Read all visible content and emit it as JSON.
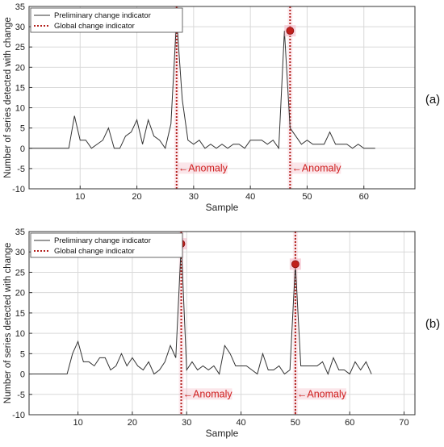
{
  "colors": {
    "preliminary": "#333333",
    "global": "#b3201c",
    "marker": "#c0201c",
    "marker_glow": "#f4b6c4",
    "anomaly_text": "#d02020",
    "grid": "#d9d9d9",
    "axis": "#333333"
  },
  "chart_data": [
    {
      "type": "line",
      "panel_label": "(a)",
      "xlabel": "Sample",
      "ylabel": "Number of series detected with change",
      "xlim": [
        1,
        69
      ],
      "ylim": [
        -10,
        35
      ],
      "xticks": [
        10,
        20,
        30,
        40,
        50,
        60
      ],
      "yticks": [
        -10,
        -5,
        0,
        5,
        10,
        15,
        20,
        25,
        30,
        35
      ],
      "grid": true,
      "legend": {
        "placement": "top-left",
        "entries": [
          "Preliminary change indicator",
          "Global change indicator"
        ]
      },
      "series": [
        {
          "name": "Preliminary change indicator",
          "style": "solid",
          "x": [
            1,
            2,
            3,
            4,
            5,
            6,
            7,
            8,
            9,
            10,
            11,
            12,
            13,
            14,
            15,
            16,
            17,
            18,
            19,
            20,
            21,
            22,
            23,
            24,
            25,
            26,
            27,
            28,
            29,
            30,
            31,
            32,
            33,
            34,
            35,
            36,
            37,
            38,
            39,
            40,
            41,
            42,
            43,
            44,
            45,
            46,
            47,
            48,
            49,
            50,
            51,
            52,
            53,
            54,
            55,
            56,
            57,
            58,
            59,
            60,
            61,
            62
          ],
          "values": [
            0,
            0,
            0,
            0,
            0,
            0,
            0,
            0,
            8,
            2,
            2,
            0,
            1,
            2,
            5,
            0,
            0,
            3,
            4,
            7,
            1,
            7,
            3,
            2,
            0,
            6,
            32,
            12,
            2,
            1,
            2,
            0,
            1,
            0,
            1,
            0,
            1,
            1,
            0,
            2,
            2,
            2,
            1,
            2,
            0,
            29,
            5,
            3,
            1,
            2,
            1,
            1,
            1,
            4,
            1,
            1,
            1,
            0,
            1,
            0,
            0,
            0
          ]
        },
        {
          "name": "Global change indicator",
          "style": "dotted",
          "x_values": [
            27,
            47
          ],
          "peaks": [
            32,
            29
          ]
        }
      ],
      "annotations": [
        {
          "text": "←Anomaly",
          "x": 27,
          "y": -5.5
        },
        {
          "text": "←Anomaly",
          "x": 47,
          "y": -5.5
        }
      ]
    },
    {
      "type": "line",
      "panel_label": "(b)",
      "xlabel": "Sample",
      "ylabel": "Number of series detected with change",
      "xlim": [
        1,
        72
      ],
      "ylim": [
        -10,
        35
      ],
      "xticks": [
        10,
        20,
        30,
        40,
        50,
        60,
        70
      ],
      "yticks": [
        -10,
        -5,
        0,
        5,
        10,
        15,
        20,
        25,
        30,
        35
      ],
      "grid": true,
      "legend": {
        "placement": "top-left",
        "entries": [
          "Preliminary change indicator",
          "Global change indicator"
        ]
      },
      "series": [
        {
          "name": "Preliminary change indicator",
          "style": "solid",
          "x": [
            1,
            2,
            3,
            4,
            5,
            6,
            7,
            8,
            9,
            10,
            11,
            12,
            13,
            14,
            15,
            16,
            17,
            18,
            19,
            20,
            21,
            22,
            23,
            24,
            25,
            26,
            27,
            28,
            29,
            30,
            31,
            32,
            33,
            34,
            35,
            36,
            37,
            38,
            39,
            40,
            41,
            42,
            43,
            44,
            45,
            46,
            47,
            48,
            49,
            50,
            51,
            52,
            53,
            54,
            55,
            56,
            57,
            58,
            59,
            60,
            61,
            62,
            63,
            64
          ],
          "values": [
            0,
            0,
            0,
            0,
            0,
            0,
            0,
            0,
            5,
            8,
            3,
            3,
            2,
            4,
            4,
            1,
            2,
            5,
            2,
            4,
            2,
            1,
            3,
            0,
            1,
            3,
            7,
            4,
            32,
            1,
            3,
            1,
            2,
            1,
            2,
            0,
            7,
            5,
            2,
            2,
            2,
            1,
            0,
            5,
            1,
            1,
            2,
            0,
            1,
            27,
            2,
            2,
            2,
            2,
            3,
            0,
            4,
            1,
            1,
            0,
            3,
            1,
            3,
            0
          ]
        },
        {
          "name": "Global change indicator",
          "style": "dotted",
          "x_values": [
            29,
            50
          ],
          "peaks": [
            32,
            27
          ]
        }
      ],
      "annotations": [
        {
          "text": "←Anomaly",
          "x": 29,
          "y": -5.5
        },
        {
          "text": "←Anomaly",
          "x": 50,
          "y": -5.5
        }
      ]
    }
  ]
}
